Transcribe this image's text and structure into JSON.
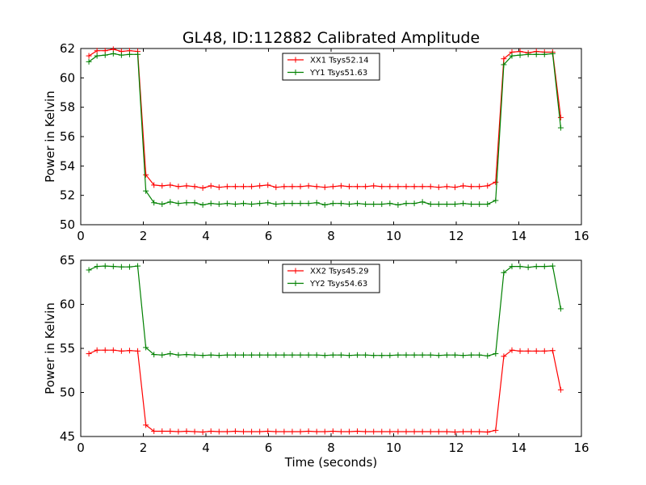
{
  "figure": {
    "title": "GL48, ID:112882 Calibrated Amplitude"
  },
  "chart_data": [
    {
      "type": "line",
      "ylabel": "Power in Kelvin",
      "xlabel": "",
      "xlim": [
        0,
        16
      ],
      "ylim": [
        50,
        62
      ],
      "xticks": [
        "0",
        "2",
        "4",
        "6",
        "8",
        "10",
        "12",
        "14",
        "16"
      ],
      "yticks": [
        "50",
        "52",
        "54",
        "56",
        "58",
        "60",
        "62"
      ],
      "legend_position": "upper-center",
      "grid": false,
      "x": [
        0.26,
        0.52,
        0.78,
        1.04,
        1.3,
        1.56,
        1.82,
        2.08,
        2.34,
        2.6,
        2.86,
        3.12,
        3.38,
        3.64,
        3.9,
        4.16,
        4.42,
        4.68,
        4.94,
        5.2,
        5.46,
        5.72,
        5.98,
        6.24,
        6.5,
        6.76,
        7.02,
        7.28,
        7.54,
        7.8,
        8.06,
        8.32,
        8.58,
        8.84,
        9.1,
        9.36,
        9.62,
        9.88,
        10.14,
        10.4,
        10.66,
        10.92,
        11.18,
        11.44,
        11.7,
        11.96,
        12.22,
        12.48,
        12.74,
        13.0,
        13.26,
        13.52,
        13.78,
        14.04,
        14.3,
        14.56,
        14.82,
        15.08,
        15.34
      ],
      "series": [
        {
          "name": "XX1 Tsys52.14",
          "color": "#ff0000",
          "values": [
            61.5,
            61.85,
            61.85,
            61.95,
            61.8,
            61.85,
            61.8,
            53.4,
            52.7,
            52.65,
            52.7,
            52.6,
            52.65,
            52.6,
            52.5,
            52.65,
            52.55,
            52.6,
            52.6,
            52.6,
            52.6,
            52.65,
            52.7,
            52.55,
            52.6,
            52.6,
            52.6,
            52.65,
            52.6,
            52.55,
            52.6,
            52.65,
            52.6,
            52.6,
            52.6,
            52.65,
            52.6,
            52.6,
            52.6,
            52.6,
            52.6,
            52.6,
            52.6,
            52.55,
            52.6,
            52.55,
            52.65,
            52.6,
            52.6,
            52.65,
            52.9,
            61.3,
            61.75,
            61.8,
            61.7,
            61.8,
            61.75,
            61.75,
            57.3
          ]
        },
        {
          "name": "YY1 Tsys51.63",
          "color": "#008000",
          "values": [
            61.1,
            61.5,
            61.55,
            61.65,
            61.55,
            61.6,
            61.6,
            52.3,
            51.5,
            51.4,
            51.55,
            51.45,
            51.5,
            51.5,
            51.35,
            51.45,
            51.4,
            51.45,
            51.4,
            51.45,
            51.4,
            51.45,
            51.5,
            51.4,
            51.45,
            51.45,
            51.45,
            51.45,
            51.5,
            51.35,
            51.45,
            51.45,
            51.4,
            51.45,
            51.4,
            51.4,
            51.4,
            51.45,
            51.35,
            51.45,
            51.45,
            51.55,
            51.4,
            51.4,
            51.4,
            51.4,
            51.45,
            51.4,
            51.4,
            51.4,
            51.65,
            60.9,
            61.5,
            61.55,
            61.6,
            61.6,
            61.6,
            61.65,
            56.6
          ]
        }
      ]
    },
    {
      "type": "line",
      "ylabel": "Power in Kelvin",
      "xlabel": "Time (seconds)",
      "xlim": [
        0,
        16
      ],
      "ylim": [
        45,
        65
      ],
      "xticks": [
        "0",
        "2",
        "4",
        "6",
        "8",
        "10",
        "12",
        "14",
        "16"
      ],
      "yticks": [
        "45",
        "50",
        "55",
        "60",
        "65"
      ],
      "legend_position": "upper-center",
      "grid": false,
      "x": [
        0.26,
        0.52,
        0.78,
        1.04,
        1.3,
        1.56,
        1.82,
        2.08,
        2.34,
        2.6,
        2.86,
        3.12,
        3.38,
        3.64,
        3.9,
        4.16,
        4.42,
        4.68,
        4.94,
        5.2,
        5.46,
        5.72,
        5.98,
        6.24,
        6.5,
        6.76,
        7.02,
        7.28,
        7.54,
        7.8,
        8.06,
        8.32,
        8.58,
        8.84,
        9.1,
        9.36,
        9.62,
        9.88,
        10.14,
        10.4,
        10.66,
        10.92,
        11.18,
        11.44,
        11.7,
        11.96,
        12.22,
        12.48,
        12.74,
        13.0,
        13.26,
        13.52,
        13.78,
        14.04,
        14.3,
        14.56,
        14.82,
        15.08,
        15.34
      ],
      "series": [
        {
          "name": "XX2 Tsys45.29",
          "color": "#ff0000",
          "values": [
            54.4,
            54.8,
            54.8,
            54.8,
            54.7,
            54.75,
            54.7,
            46.3,
            45.6,
            45.6,
            45.6,
            45.55,
            45.6,
            45.55,
            45.5,
            45.6,
            45.55,
            45.55,
            45.6,
            45.55,
            45.55,
            45.55,
            45.6,
            45.55,
            45.55,
            45.55,
            45.55,
            45.6,
            45.55,
            45.55,
            45.6,
            45.55,
            45.55,
            45.6,
            45.55,
            45.55,
            45.55,
            45.55,
            45.55,
            45.55,
            45.55,
            45.55,
            45.55,
            45.55,
            45.55,
            45.5,
            45.55,
            45.55,
            45.55,
            45.5,
            45.7,
            54.1,
            54.8,
            54.7,
            54.7,
            54.7,
            54.7,
            54.75,
            50.3
          ]
        },
        {
          "name": "YY2 Tsys54.63",
          "color": "#008000",
          "values": [
            63.9,
            64.3,
            64.35,
            64.3,
            64.25,
            64.25,
            64.35,
            55.1,
            54.3,
            54.25,
            54.4,
            54.25,
            54.3,
            54.25,
            54.2,
            54.25,
            54.2,
            54.25,
            54.25,
            54.25,
            54.25,
            54.25,
            54.25,
            54.25,
            54.25,
            54.25,
            54.25,
            54.25,
            54.25,
            54.2,
            54.25,
            54.25,
            54.2,
            54.25,
            54.25,
            54.2,
            54.2,
            54.2,
            54.25,
            54.25,
            54.25,
            54.25,
            54.25,
            54.2,
            54.25,
            54.25,
            54.2,
            54.25,
            54.25,
            54.15,
            54.4,
            63.6,
            64.3,
            64.3,
            64.2,
            64.3,
            64.3,
            64.35,
            59.5
          ]
        }
      ]
    }
  ]
}
